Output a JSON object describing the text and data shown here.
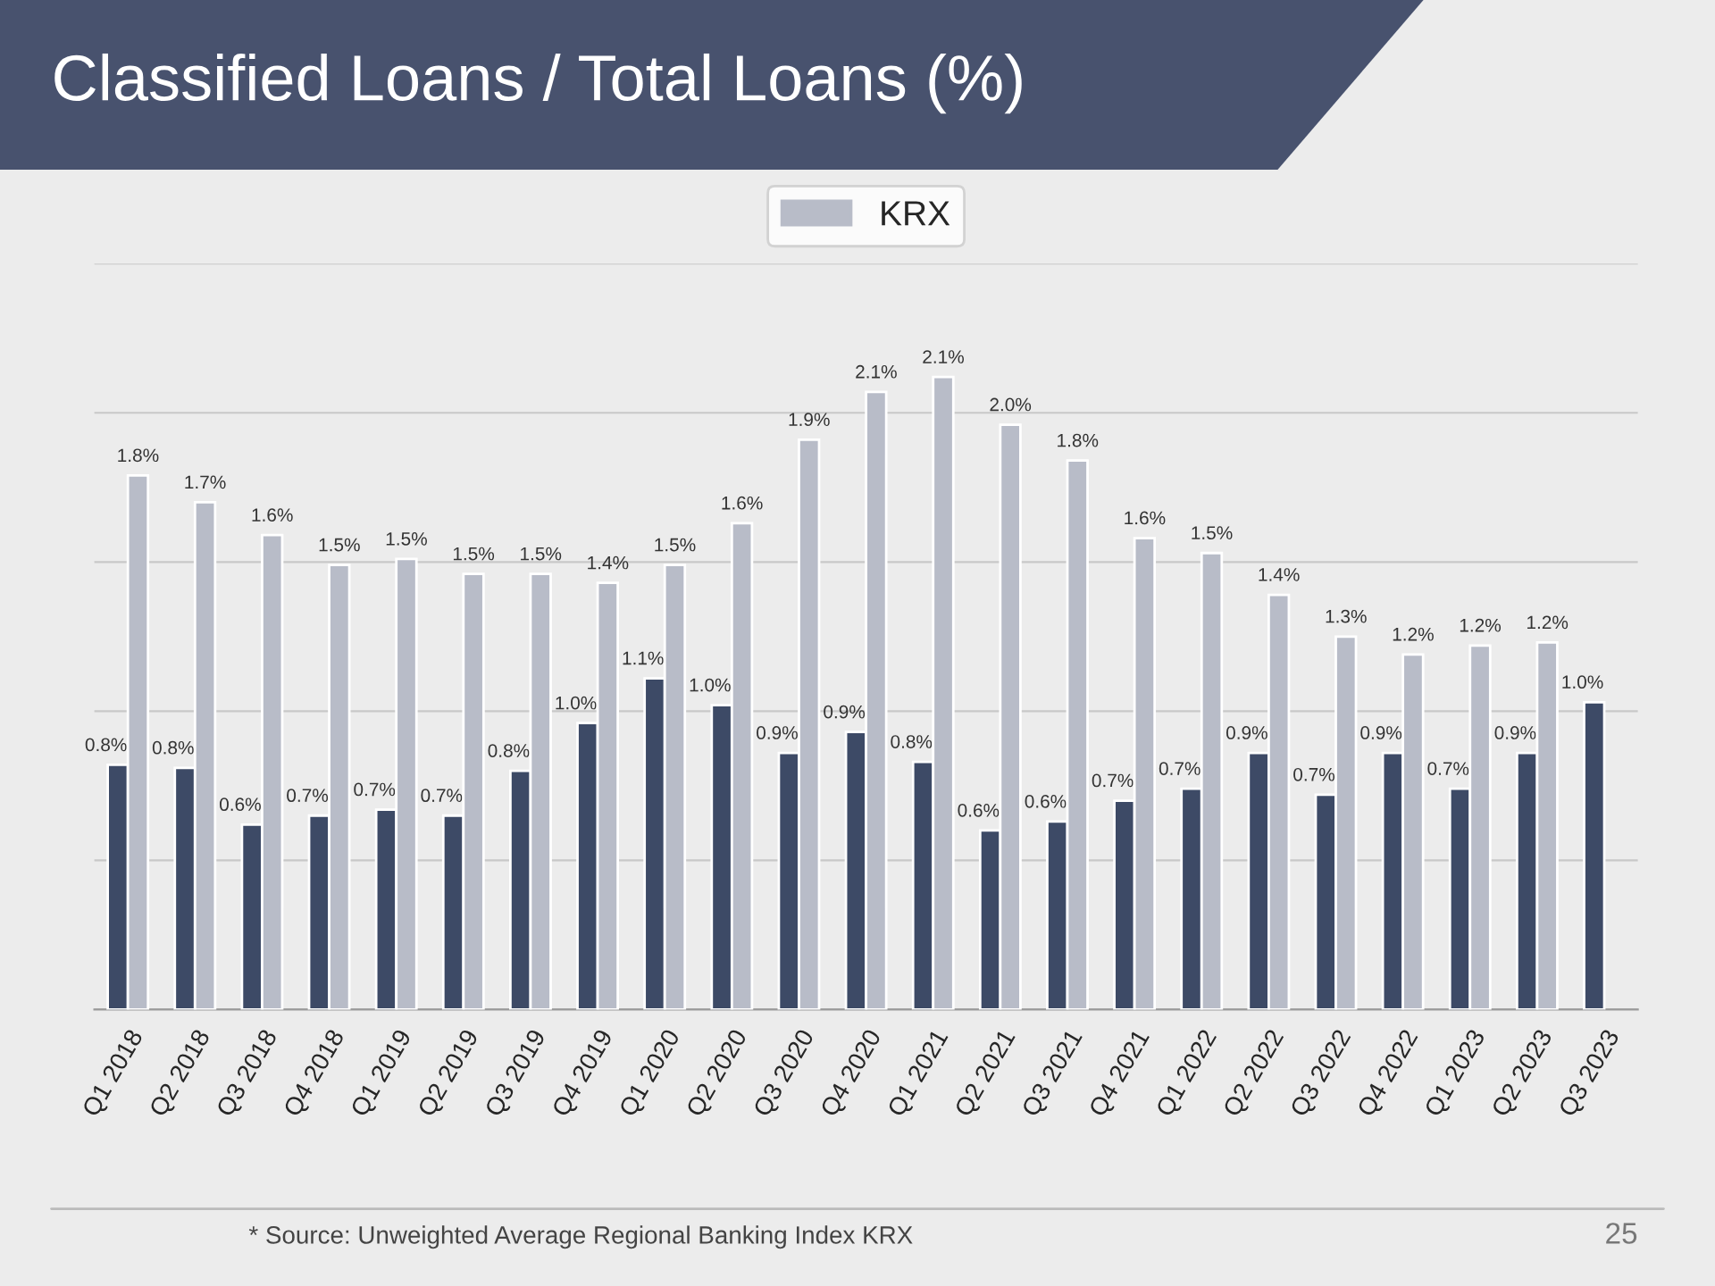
{
  "chart_data": {
    "type": "bar",
    "title": "Classified Loans / Total Loans (%)",
    "categories": [
      "Q1 2018",
      "Q2 2018",
      "Q3 2018",
      "Q4 2018",
      "Q1 2019",
      "Q2 2019",
      "Q3 2019",
      "Q4 2019",
      "Q1 2020",
      "Q2 2020",
      "Q3 2020",
      "Q4 2020",
      "Q1 2021",
      "Q2 2021",
      "Q3 2021",
      "Q4 2021",
      "Q1 2022",
      "Q2 2022",
      "Q3 2022",
      "Q4 2022",
      "Q1 2023",
      "Q2 2023",
      "Q3 2023"
    ],
    "series": [
      {
        "color": "#3d4a66",
        "values": [
          0.82,
          0.81,
          0.62,
          0.65,
          0.67,
          0.65,
          0.8,
          0.96,
          1.11,
          1.02,
          0.86,
          0.93,
          0.83,
          0.6,
          0.63,
          0.7,
          0.74,
          0.86,
          0.72,
          0.86,
          0.74,
          0.86,
          1.03
        ],
        "value_labels": [
          "0.8%",
          "0.8%",
          "0.6%",
          "0.7%",
          "0.7%",
          "0.7%",
          "0.8%",
          "1.0%",
          "1.1%",
          "1.0%",
          "0.9%",
          "0.9%",
          "0.8%",
          "0.6%",
          "0.6%",
          "0.7%",
          "0.7%",
          "0.9%",
          "0.7%",
          "0.9%",
          "0.7%",
          "0.9%",
          "1.0%"
        ]
      },
      {
        "name": "KRX",
        "color": "#b8bcc8",
        "values": [
          1.79,
          1.7,
          1.59,
          1.49,
          1.51,
          1.46,
          1.46,
          1.43,
          1.49,
          1.63,
          1.91,
          2.07,
          2.12,
          1.96,
          1.84,
          1.58,
          1.53,
          1.39,
          1.25,
          1.19,
          1.22,
          1.23,
          null
        ],
        "value_labels": [
          "1.8%",
          "1.7%",
          "1.6%",
          "1.5%",
          "1.5%",
          "1.5%",
          "1.5%",
          "1.4%",
          "1.5%",
          "1.6%",
          "1.9%",
          "2.1%",
          "2.1%",
          "2.0%",
          "1.8%",
          "1.6%",
          "1.5%",
          "1.4%",
          "1.3%",
          "1.2%",
          "1.2%",
          "1.2%",
          null
        ]
      }
    ],
    "ylim": [
      0,
      2.5
    ],
    "yticks": [
      {
        "value": 0,
        "label": null
      },
      {
        "value": 0.5,
        "label": null
      },
      {
        "value": 1.0,
        "label": null
      },
      {
        "value": 1.5,
        "label": null
      },
      {
        "value": 2.0,
        "label": null
      },
      {
        "value": 2.5,
        "label": null
      }
    ],
    "tick_labels": "x",
    "grid": "y",
    "legend": "top",
    "annotations": [
      "* Source: Unweighted Average Regional Banking Index KRX",
      "25"
    ]
  }
}
